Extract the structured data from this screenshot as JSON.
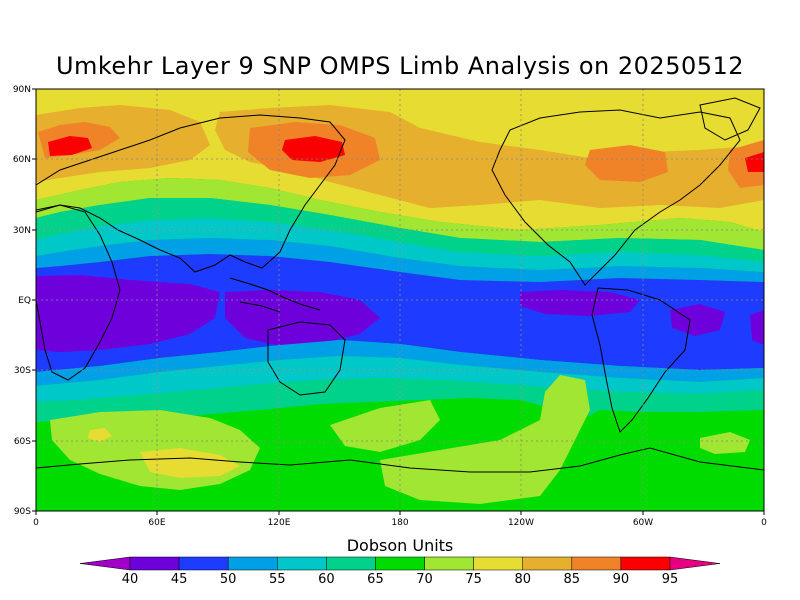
{
  "title": "Umkehr Layer 9 SNP OMPS Limb Analysis on 20250512",
  "map": {
    "lat_labels": [
      "90N",
      "60N",
      "30N",
      "EQ",
      "30S",
      "60S",
      "90S"
    ],
    "lon_labels": [
      "0",
      "60E",
      "120E",
      "180",
      "120W",
      "60W",
      "0"
    ],
    "grid": true,
    "background_band": 70
  },
  "colorbar": {
    "title": "Dobson Units",
    "levels": [
      "40",
      "45",
      "50",
      "55",
      "60",
      "65",
      "70",
      "75",
      "80",
      "85",
      "90",
      "95"
    ],
    "colors": [
      "#a000c8",
      "#6e00dc",
      "#1e3cff",
      "#00a0e6",
      "#00c8c8",
      "#00d28c",
      "#00dc00",
      "#a0e632",
      "#e6dc32",
      "#e6af2d",
      "#f08228",
      "#fa0000",
      "#e6007f"
    ]
  },
  "band_colors": {
    "40": "#a000c8",
    "45": "#6e00dc",
    "50": "#1e3cff",
    "55": "#00a0e6",
    "60": "#00c8c8",
    "65": "#00d28c",
    "70": "#00dc00",
    "75": "#a0e632",
    "80": "#e6dc32",
    "85": "#e6af2d",
    "90": "#f08228",
    "95": "#fa0000"
  }
}
